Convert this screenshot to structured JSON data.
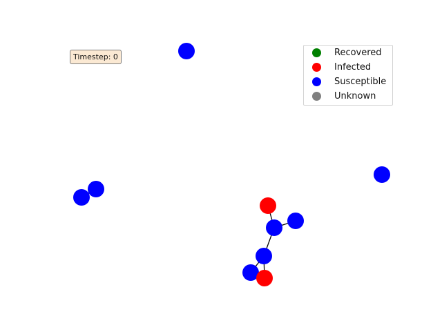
{
  "timestep": {
    "label": "Timestep: 0"
  },
  "legend": {
    "placement": "top-right",
    "items": [
      {
        "label": "Recovered",
        "color": "#008000"
      },
      {
        "label": "Infected",
        "color": "#ff0000"
      },
      {
        "label": "Susceptible",
        "color": "#0000ff"
      },
      {
        "label": "Unknown",
        "color": "#808080"
      }
    ]
  },
  "graph": {
    "nodes": [
      {
        "id": "n1",
        "state": "Susceptible"
      },
      {
        "id": "n2",
        "state": "Susceptible"
      },
      {
        "id": "n3",
        "state": "Susceptible"
      },
      {
        "id": "n4",
        "state": "Susceptible"
      },
      {
        "id": "n5",
        "state": "Infected"
      },
      {
        "id": "n6",
        "state": "Susceptible"
      },
      {
        "id": "n7",
        "state": "Susceptible"
      },
      {
        "id": "n8",
        "state": "Susceptible"
      },
      {
        "id": "n9",
        "state": "Susceptible"
      },
      {
        "id": "n10",
        "state": "Infected"
      }
    ],
    "edges": [
      [
        "n2",
        "n3"
      ],
      [
        "n5",
        "n6"
      ],
      [
        "n6",
        "n7"
      ],
      [
        "n6",
        "n8"
      ],
      [
        "n8",
        "n9"
      ],
      [
        "n8",
        "n10"
      ]
    ]
  }
}
